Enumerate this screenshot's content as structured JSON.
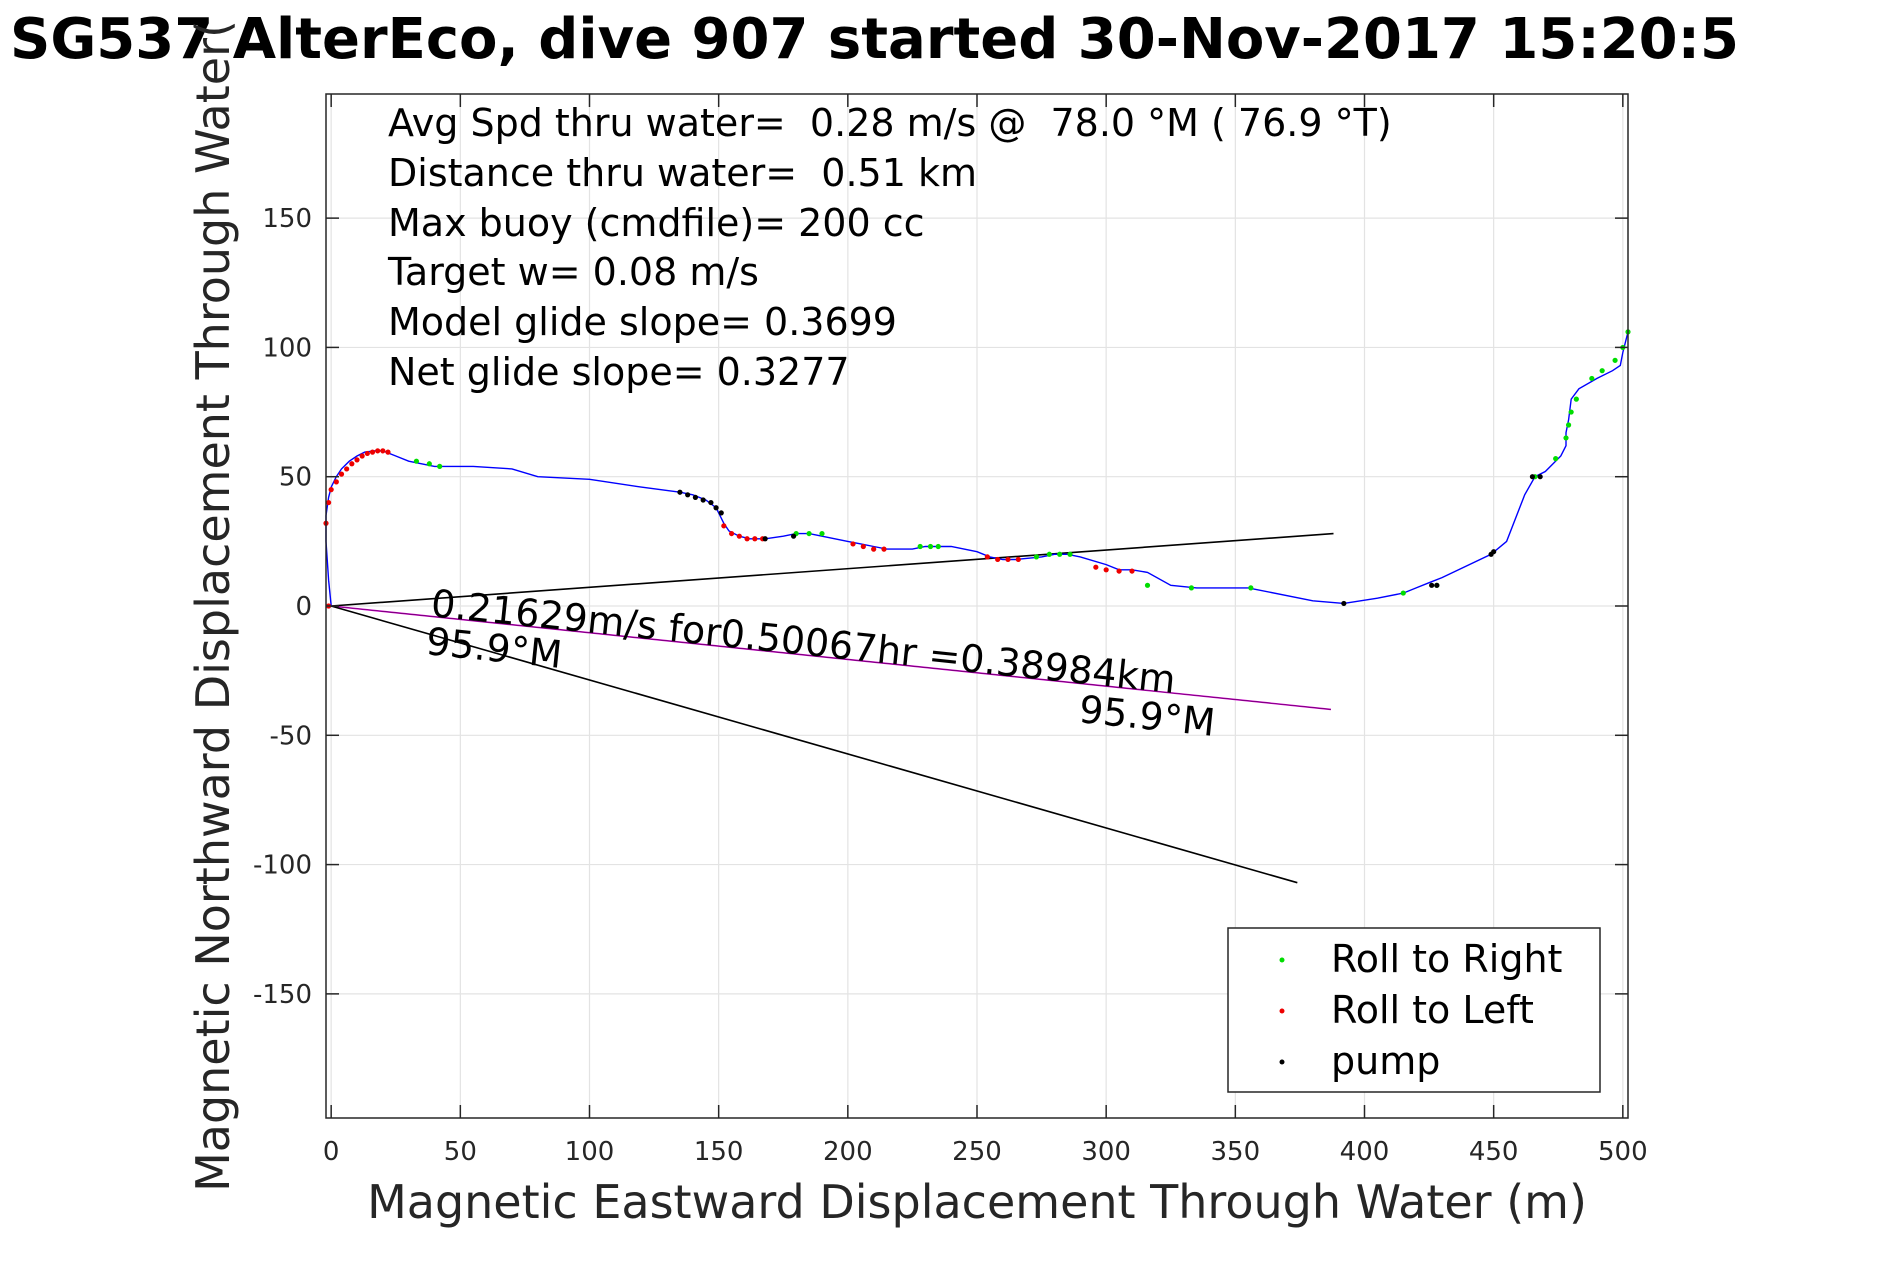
{
  "chart_data": {
    "type": "line",
    "title": "SG537 AlterEco, dive 907 started 30-Nov-2017 15:20:5",
    "xlabel": "Magnetic Eastward Displacement Through Water (m)",
    "ylabel": "Magnetic Northward Displacement Through Water(",
    "xlim": [
      -2,
      502
    ],
    "ylim": [
      -198,
      198
    ],
    "xticks": [
      0,
      50,
      100,
      150,
      200,
      250,
      300,
      350,
      400,
      450,
      500
    ],
    "yticks": [
      -150,
      -100,
      -50,
      0,
      50,
      100,
      150
    ],
    "xtick_labels": [
      "0",
      "50",
      "100",
      "150",
      "200",
      "250",
      "300",
      "350",
      "400",
      "450",
      "500"
    ],
    "ytick_labels": [
      "-150",
      "-100",
      "-50",
      "0",
      "50",
      "100",
      "150"
    ],
    "grid": true,
    "legend_position": "bottom-right",
    "colors": {
      "track": "#0000ff",
      "roll_right": "#00dd00",
      "roll_left": "#ee0000",
      "pump": "#000000",
      "current": "#cc00cc",
      "reference": "#000000"
    },
    "annotations": [
      "Avg Spd thru water=  0.28 m/s @  78.0 °M ( 76.9 °T)",
      "Distance thru water=  0.51 km",
      "Max buoy (cmdfile)= 200 cc",
      "Target w= 0.08 m/s",
      "Model glide slope= 0.3699",
      "Net glide slope= 0.3277"
    ],
    "current_label_1": "0.21629m/s for0.50067hr =0.38984km",
    "current_label_2": "95.9°M",
    "current_label_3": "95.9°M",
    "track": {
      "x": [
        0,
        -1,
        -2,
        -2,
        -1,
        0,
        2,
        4,
        7,
        10,
        13,
        17,
        20,
        25,
        30,
        35,
        40,
        55,
        70,
        80,
        100,
        120,
        135,
        140,
        145,
        149,
        150,
        152,
        154,
        158,
        162,
        168,
        175,
        180,
        185,
        190,
        200,
        205,
        210,
        215,
        225,
        230,
        240,
        250,
        255,
        260,
        265,
        275,
        280,
        285,
        290,
        300,
        305,
        310,
        316,
        325,
        335,
        345,
        355,
        380,
        392,
        405,
        415,
        420,
        425,
        430,
        449,
        455,
        462,
        466,
        470,
        476,
        478,
        478,
        479,
        480,
        483,
        490,
        496,
        499,
        500,
        502
      ],
      "y": [
        0,
        10,
        25,
        35,
        42,
        46,
        50,
        53,
        56,
        58,
        59.5,
        60,
        60,
        58,
        56,
        55,
        54,
        54,
        53,
        50,
        49,
        46,
        44,
        43,
        41,
        38,
        36,
        32,
        29,
        27,
        26,
        26,
        27,
        28,
        28,
        27,
        25,
        24,
        23,
        22,
        22,
        23,
        23,
        21,
        19,
        18,
        18,
        19,
        20,
        20,
        19,
        16,
        14,
        14,
        13,
        8,
        7,
        7,
        7,
        2,
        1,
        3,
        5,
        7,
        9,
        11,
        20,
        25,
        43,
        50,
        52,
        58,
        62,
        67,
        72,
        80,
        84,
        88,
        91,
        93,
        98,
        106
      ]
    },
    "series": [
      {
        "name": "Roll to Right",
        "x": [
          33,
          38,
          42,
          180,
          185,
          190,
          228,
          232,
          235,
          273,
          278,
          282,
          286,
          316,
          333,
          356,
          415,
          428,
          466,
          474,
          478,
          479,
          480,
          482,
          488,
          492,
          497,
          500,
          502
        ],
        "y": [
          56,
          55,
          54,
          28,
          28,
          28,
          23,
          23,
          23,
          19,
          20,
          20,
          20,
          8,
          7,
          7,
          5,
          8,
          50,
          57,
          65,
          70,
          75,
          80,
          88,
          91,
          95,
          100,
          106
        ]
      },
      {
        "name": "Roll to Left",
        "x": [
          -1,
          -2,
          -1,
          0,
          2,
          4,
          6,
          8,
          10,
          12,
          14,
          16,
          18,
          20,
          22,
          152,
          155,
          158,
          161,
          164,
          167,
          202,
          206,
          210,
          214,
          254,
          258,
          262,
          266,
          296,
          300,
          305,
          310
        ],
        "y": [
          0,
          32,
          40,
          45,
          48,
          51,
          53,
          55,
          56.5,
          58,
          59,
          59.5,
          60,
          60,
          59.5,
          31,
          28,
          27,
          26,
          26,
          26,
          24,
          23,
          22,
          22,
          19,
          18,
          18,
          18,
          15,
          14,
          13.5,
          13.5
        ]
      },
      {
        "name": "pump",
        "x": [
          135,
          138,
          141,
          144,
          147,
          149,
          151,
          168,
          179,
          392,
          426,
          428,
          449,
          450,
          465,
          468
        ],
        "y": [
          44,
          43,
          42,
          41,
          40,
          38,
          36,
          26,
          27,
          1,
          8,
          8,
          20,
          21,
          50,
          50
        ]
      }
    ],
    "reference_lines": [
      {
        "name": "line-upper",
        "x": [
          0,
          388
        ],
        "y": [
          0,
          28
        ]
      },
      {
        "name": "line-current",
        "x": [
          0,
          387
        ],
        "y": [
          0,
          -40
        ]
      },
      {
        "name": "line-lower",
        "x": [
          0,
          374
        ],
        "y": [
          0,
          -107
        ]
      }
    ]
  }
}
